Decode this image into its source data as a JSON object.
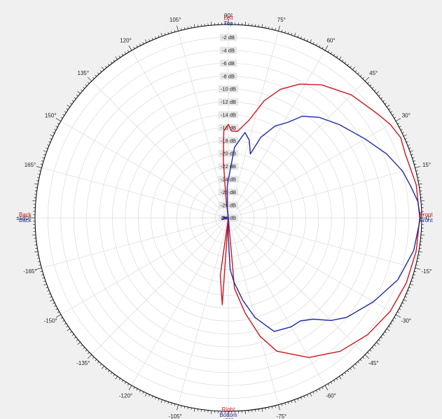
{
  "chart_data": {
    "type": "polar-line",
    "radial_unit": "dB",
    "radial_range": [
      -30,
      0
    ],
    "radial_ticks": [
      "-2 dB",
      "-4 dB",
      "-6 dB",
      "-8 dB",
      "-10 dB",
      "-12 dB",
      "-14 dB",
      "-16 dB",
      "-18 dB",
      "-20 dB",
      "-22 dB",
      "-24 dB",
      "-26 dB",
      "-28 dB",
      "-30 dB"
    ],
    "radial_tick_values": [
      -2,
      -4,
      -6,
      -8,
      -10,
      -12,
      -14,
      -16,
      -18,
      -20,
      -22,
      -24,
      -26,
      -28,
      -30
    ],
    "angle_ticks": [
      {
        "deg": 90,
        "label": "90°"
      },
      {
        "deg": 75,
        "label": "75°"
      },
      {
        "deg": 60,
        "label": "60°"
      },
      {
        "deg": 45,
        "label": "45°"
      },
      {
        "deg": 30,
        "label": "30°"
      },
      {
        "deg": 15,
        "label": "15°"
      },
      {
        "deg": 0,
        "label": "0°"
      },
      {
        "deg": -15,
        "label": "-15°"
      },
      {
        "deg": -30,
        "label": "-30°"
      },
      {
        "deg": -45,
        "label": "-45°"
      },
      {
        "deg": -60,
        "label": "-60°"
      },
      {
        "deg": -75,
        "label": "-75°"
      },
      {
        "deg": -90,
        "label": "-90°"
      },
      {
        "deg": -105,
        "label": "-105°"
      },
      {
        "deg": -120,
        "label": "-120°"
      },
      {
        "deg": -135,
        "label": "-135°"
      },
      {
        "deg": -150,
        "label": "-150°"
      },
      {
        "deg": -165,
        "label": "-165°"
      },
      {
        "deg": 180,
        "label": "±180°"
      },
      {
        "deg": 165,
        "label": "165°"
      },
      {
        "deg": 150,
        "label": "150°"
      },
      {
        "deg": 135,
        "label": "135°"
      },
      {
        "deg": 120,
        "label": "120°"
      },
      {
        "deg": 105,
        "label": "105°"
      }
    ],
    "direction_labels": {
      "top": {
        "red": "Left",
        "blue": "Top"
      },
      "bottom": {
        "red": "Right",
        "blue": "Bottom"
      },
      "right": {
        "red": "Front",
        "blue": "Front"
      },
      "left": {
        "red": "Back",
        "blue": "Back"
      }
    },
    "grid": true,
    "series": [
      {
        "color": "#d0141c",
        "points": [
          [
            -90,
            -30
          ],
          [
            -85,
            -19
          ],
          [
            -80,
            -15
          ],
          [
            -75,
            -11
          ],
          [
            -70,
            -8
          ],
          [
            -60,
            -5
          ],
          [
            -50,
            -3
          ],
          [
            -40,
            -1.8
          ],
          [
            -30,
            -1
          ],
          [
            -20,
            -0.6
          ],
          [
            -10,
            -0.4
          ],
          [
            0,
            -0.3
          ],
          [
            10,
            -0.4
          ],
          [
            20,
            -0.8
          ],
          [
            25,
            -0.5
          ],
          [
            30,
            -1
          ],
          [
            35,
            -1.8
          ],
          [
            45,
            -3
          ],
          [
            55,
            -4.8
          ],
          [
            62,
            -6.5
          ],
          [
            68,
            -8.5
          ],
          [
            73,
            -11
          ],
          [
            78,
            -14.5
          ],
          [
            84,
            -16.5
          ],
          [
            88,
            -16.5
          ],
          [
            90,
            -15.5
          ],
          [
            93,
            -16.5
          ],
          [
            95,
            -21
          ],
          [
            97,
            -27
          ],
          [
            100,
            -30
          ],
          [
            165,
            -30
          ],
          [
            180,
            -30
          ],
          [
            195,
            -29
          ],
          [
            205,
            -30
          ],
          [
            262,
            -21
          ],
          [
            266,
            -16.5
          ],
          [
            270,
            -30
          ]
        ]
      },
      {
        "color": "#1f2aa8",
        "points": [
          [
            -90,
            -27
          ],
          [
            -88,
            -22
          ],
          [
            -85,
            -20
          ],
          [
            -80,
            -17
          ],
          [
            -75,
            -14
          ],
          [
            -68,
            -11
          ],
          [
            -60,
            -10.5
          ],
          [
            -55,
            -10.5
          ],
          [
            -50,
            -9.5
          ],
          [
            -45,
            -7.5
          ],
          [
            -40,
            -6
          ],
          [
            -30,
            -4
          ],
          [
            -20,
            -2
          ],
          [
            -10,
            -0.8
          ],
          [
            0,
            -0.2
          ],
          [
            5,
            -0.5
          ],
          [
            10,
            -1.3
          ],
          [
            15,
            -2
          ],
          [
            22,
            -3.5
          ],
          [
            30,
            -5.5
          ],
          [
            40,
            -7.5
          ],
          [
            48,
            -9
          ],
          [
            54,
            -10.5
          ],
          [
            58,
            -12.5
          ],
          [
            63,
            -14
          ],
          [
            68,
            -16.5
          ],
          [
            71,
            -19.5
          ],
          [
            75,
            -17.5
          ],
          [
            79,
            -16.5
          ],
          [
            85,
            -19
          ],
          [
            92,
            -25
          ],
          [
            96,
            -28.5
          ],
          [
            100,
            -30
          ],
          [
            170,
            -29
          ],
          [
            180,
            -29.5
          ],
          [
            190,
            -29
          ],
          [
            200,
            -30
          ]
        ]
      }
    ]
  }
}
